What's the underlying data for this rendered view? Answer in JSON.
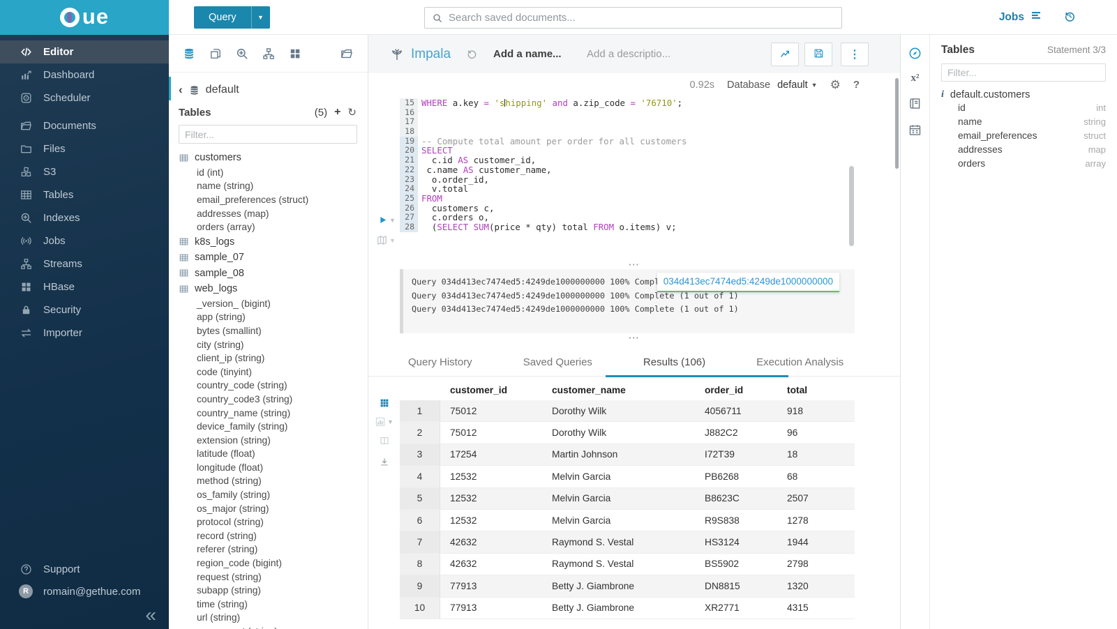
{
  "topbar": {
    "logo_text": "ue",
    "query_button": "Query",
    "search_placeholder": "Search saved documents...",
    "jobs_label": "Jobs"
  },
  "sidebar": {
    "items": [
      {
        "label": "Editor",
        "icon": "code-icon",
        "active": true
      },
      {
        "label": "Dashboard",
        "icon": "dashboard-icon"
      },
      {
        "label": "Scheduler",
        "icon": "scheduler-icon"
      },
      {
        "label": "Documents",
        "icon": "documents-icon",
        "gap": true
      },
      {
        "label": "Files",
        "icon": "folder-icon"
      },
      {
        "label": "S3",
        "icon": "cubes-icon"
      },
      {
        "label": "Tables",
        "icon": "table-grid-icon"
      },
      {
        "label": "Indexes",
        "icon": "search-plus-icon"
      },
      {
        "label": "Jobs",
        "icon": "broadcast-icon"
      },
      {
        "label": "Streams",
        "icon": "sitemap-icon"
      },
      {
        "label": "HBase",
        "icon": "blocks-icon"
      },
      {
        "label": "Security",
        "icon": "lock-icon"
      },
      {
        "label": "Importer",
        "icon": "swap-arrows-icon"
      }
    ],
    "support_label": "Support",
    "user_email": "romain@gethue.com",
    "avatar_letter": "R",
    "collapse_glyph": "«"
  },
  "left_assist": {
    "db_name": "default",
    "back_glyph": "‹",
    "tables_label": "Tables",
    "tables_count": "(5)",
    "plus_glyph": "+",
    "refresh_glyph": "↻",
    "filter_placeholder": "Filter...",
    "tables": [
      {
        "name": "customers",
        "columns": [
          "id (int)",
          "name (string)",
          "email_preferences (struct)",
          "addresses (map)",
          "orders (array)"
        ]
      },
      {
        "name": "k8s_logs",
        "columns": []
      },
      {
        "name": "sample_07",
        "columns": []
      },
      {
        "name": "sample_08",
        "columns": []
      },
      {
        "name": "web_logs",
        "columns": [
          "_version_ (bigint)",
          "app (string)",
          "bytes (smallint)",
          "city (string)",
          "client_ip (string)",
          "code (tinyint)",
          "country_code (string)",
          "country_code3 (string)",
          "country_name (string)",
          "device_family (string)",
          "extension (string)",
          "latitude (float)",
          "longitude (float)",
          "method (string)",
          "os_family (string)",
          "os_major (string)",
          "protocol (string)",
          "record (string)",
          "referer (string)",
          "region_code (bigint)",
          "request (string)",
          "subapp (string)",
          "time (string)",
          "url (string)",
          "user_agent (string)"
        ]
      }
    ]
  },
  "editor": {
    "engine": "Impala",
    "history_glyph": "↺",
    "name_placeholder": "Add a name...",
    "description_placeholder": "Add a descriptio...",
    "exec_time": "0.92s",
    "database_label": "Database",
    "database_value": "default",
    "gear_glyph": "⚙",
    "help_glyph": "?",
    "handle_glyph": "···",
    "code": [
      {
        "n": 15,
        "seg": [
          [
            "k",
            "WHERE"
          ],
          [
            "t",
            " a.key "
          ],
          [
            "k",
            "="
          ],
          [
            "t",
            " "
          ],
          [
            "s",
            "'s"
          ],
          [
            "cur",
            ""
          ],
          [
            "s",
            "hipping'"
          ],
          [
            "t",
            " "
          ],
          [
            "k",
            "and"
          ],
          [
            "t",
            " a.zip_code "
          ],
          [
            "k",
            "="
          ],
          [
            "t",
            " "
          ],
          [
            "s",
            "'76710'"
          ],
          [
            "t",
            ";"
          ]
        ]
      },
      {
        "n": 16,
        "seg": []
      },
      {
        "n": 17,
        "seg": []
      },
      {
        "n": 18,
        "seg": []
      },
      {
        "n": 19,
        "hl": true,
        "seg": [
          [
            "c",
            "-- Compute total amount per order for all customers"
          ]
        ]
      },
      {
        "n": 20,
        "hl": true,
        "seg": [
          [
            "k",
            "SELECT"
          ]
        ]
      },
      {
        "n": 21,
        "hl": true,
        "seg": [
          [
            "t",
            "  c.id "
          ],
          [
            "k",
            "AS"
          ],
          [
            "t",
            " customer_id,"
          ]
        ]
      },
      {
        "n": 22,
        "hl": true,
        "seg": [
          [
            "t",
            " c.name "
          ],
          [
            "k",
            "AS"
          ],
          [
            "t",
            " customer_name,"
          ]
        ]
      },
      {
        "n": 23,
        "hl": true,
        "seg": [
          [
            "t",
            "  o.order_id,"
          ]
        ]
      },
      {
        "n": 24,
        "hl": true,
        "seg": [
          [
            "t",
            "  v.total"
          ]
        ]
      },
      {
        "n": 25,
        "hl": true,
        "seg": [
          [
            "k",
            "FROM"
          ]
        ]
      },
      {
        "n": 26,
        "hl": true,
        "seg": [
          [
            "t",
            "  customers c,"
          ]
        ]
      },
      {
        "n": 27,
        "hl": true,
        "seg": [
          [
            "t",
            "  c.orders o,"
          ]
        ]
      },
      {
        "n": 28,
        "hl": true,
        "seg": [
          [
            "t",
            "  ("
          ],
          [
            "k",
            "SELECT"
          ],
          [
            "t",
            " "
          ],
          [
            "k",
            "SUM"
          ],
          [
            "t",
            "(price * qty) total "
          ],
          [
            "k",
            "FROM"
          ],
          [
            "t",
            " o.items) v;"
          ]
        ]
      }
    ],
    "logs": [
      "Query 034d413ec7474ed5:4249de1000000000 100% Complete (1 out of 1)",
      "Query 034d413ec7474ed5:4249de1000000000 100% Complete (1 out of 1)",
      "Query 034d413ec7474ed5:4249de1000000000 100% Complete (1 out of 1)"
    ],
    "log_tooltip": "034d413ec7474ed5:4249de1000000000",
    "tabs": [
      {
        "label": "Query History"
      },
      {
        "label": "Saved Queries"
      },
      {
        "label": "Results (106)",
        "active": true
      },
      {
        "label": "Execution Analysis"
      }
    ]
  },
  "results": {
    "columns": [
      "customer_id",
      "customer_name",
      "order_id",
      "total"
    ],
    "rows": [
      [
        "1",
        "75012",
        "Dorothy Wilk",
        "4056711",
        "918"
      ],
      [
        "2",
        "75012",
        "Dorothy Wilk",
        "J882C2",
        "96"
      ],
      [
        "3",
        "17254",
        "Martin Johnson",
        "I72T39",
        "18"
      ],
      [
        "4",
        "12532",
        "Melvin Garcia",
        "PB6268",
        "68"
      ],
      [
        "5",
        "12532",
        "Melvin Garcia",
        "B8623C",
        "2507"
      ],
      [
        "6",
        "12532",
        "Melvin Garcia",
        "R9S838",
        "1278"
      ],
      [
        "7",
        "42632",
        "Raymond S. Vestal",
        "HS3124",
        "1944"
      ],
      [
        "8",
        "42632",
        "Raymond S. Vestal",
        "BS5902",
        "2798"
      ],
      [
        "9",
        "77913",
        "Betty J. Giambrone",
        "DN8815",
        "1320"
      ],
      [
        "10",
        "77913",
        "Betty J. Giambrone",
        "XR2771",
        "4315"
      ]
    ]
  },
  "right_assist": {
    "title": "Tables",
    "statement_label": "Statement 3/3",
    "filter_placeholder": "Filter...",
    "info_glyph": "i",
    "table_name": "default.customers",
    "columns": [
      {
        "name": "id",
        "type": "int"
      },
      {
        "name": "name",
        "type": "string"
      },
      {
        "name": "email_preferences",
        "type": "struct"
      },
      {
        "name": "addresses",
        "type": "map"
      },
      {
        "name": "orders",
        "type": "array"
      }
    ]
  },
  "colors": {
    "brand_cyan": "#28a5c7",
    "accent_blue": "#2196c9",
    "button_teal": "#1a87ad",
    "sidebar_navy": "#17334c",
    "keyword_purple": "#b13ebc",
    "string_olive": "#91980e",
    "comment_gray": "#9b9b9b",
    "tooltip_link_blue": "#2a95d8",
    "tooltip_underline_green": "#66bb6a"
  }
}
